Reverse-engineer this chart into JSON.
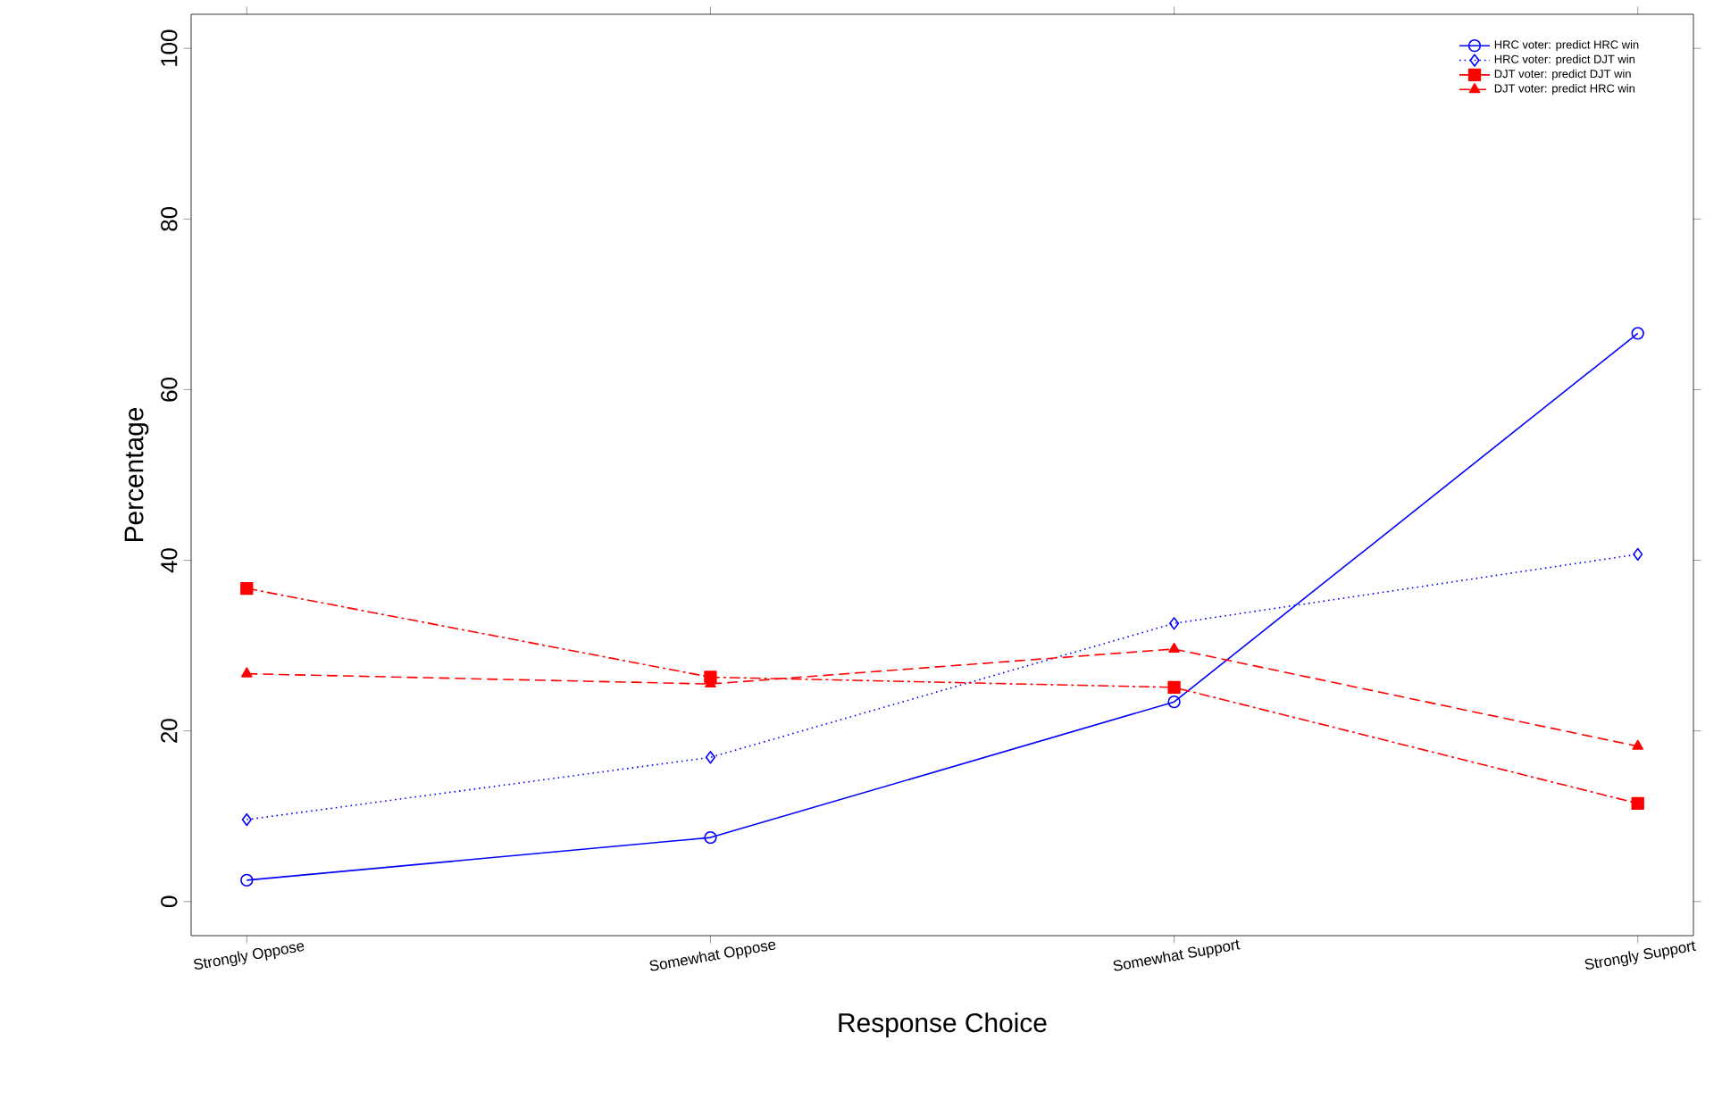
{
  "chart_data": {
    "type": "line",
    "xlabel": "Response Choice",
    "ylabel": "Percentage",
    "categories": [
      "Strongly Oppose",
      "Somewhat Oppose",
      "Somewhat Support",
      "Strongly Support"
    ],
    "ylim": [
      -4,
      104
    ],
    "yticks": [
      0,
      20,
      40,
      60,
      80,
      100
    ],
    "grid": false,
    "legend": "top right",
    "series": [
      {
        "name": "HRC voter: predict HRC win",
        "color": "#0000ff",
        "marker": "circle",
        "line_style": "solid",
        "values": [
          2.5,
          7.5,
          23.4,
          66.6
        ]
      },
      {
        "name": "HRC voter: predict DJT win",
        "color": "#0000ff",
        "marker": "diamond",
        "line_style": "dotted",
        "values": [
          9.6,
          16.9,
          32.6,
          40.7
        ]
      },
      {
        "name": "DJT voter: predict DJT win",
        "color": "#ff0000",
        "marker": "square",
        "line_style": "dashdot",
        "values": [
          36.7,
          26.3,
          25.1,
          11.5
        ]
      },
      {
        "name": "DJT voter: predict HRC win",
        "color": "#ff0000",
        "marker": "triangle",
        "line_style": "dashed",
        "values": [
          26.7,
          25.5,
          29.6,
          18.2
        ]
      }
    ]
  }
}
